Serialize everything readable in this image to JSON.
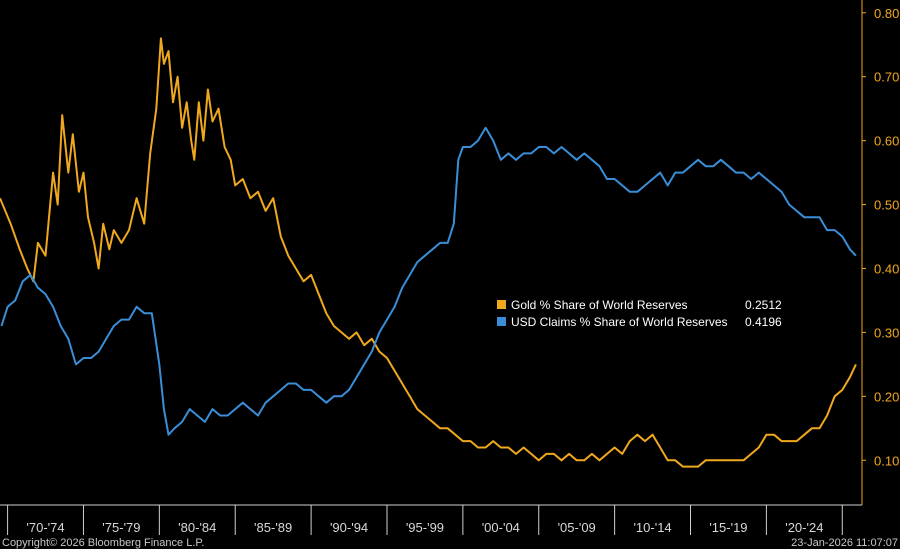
{
  "chart_data": {
    "type": "line",
    "x_categories": [
      "'70-'74",
      "'75-'79",
      "'80-'84",
      "'85-'89",
      "'90-'94",
      "'95-'99",
      "'00-'04",
      "'05-'09",
      "'10-'14",
      "'15-'19",
      "'20-'24"
    ],
    "y_ticks": [
      "0.10",
      "0.20",
      "0.30",
      "0.40",
      "0.50",
      "0.60",
      "0.70",
      "0.80"
    ],
    "ylim": [
      0.03,
      0.82
    ],
    "xlim": [
      1969.5,
      2026.3
    ],
    "grid": false,
    "legend_position": "center-right",
    "series": [
      {
        "name": "Gold % Share of World Reserves",
        "last_value": "0.2512",
        "color": "#f0a81e",
        "points": [
          [
            1969.5,
            0.51
          ],
          [
            1970.2,
            0.47
          ],
          [
            1970.8,
            0.43
          ],
          [
            1971.3,
            0.4
          ],
          [
            1971.7,
            0.38
          ],
          [
            1972.0,
            0.44
          ],
          [
            1972.5,
            0.42
          ],
          [
            1973.0,
            0.55
          ],
          [
            1973.3,
            0.5
          ],
          [
            1973.6,
            0.64
          ],
          [
            1974.0,
            0.55
          ],
          [
            1974.3,
            0.61
          ],
          [
            1974.7,
            0.52
          ],
          [
            1975.0,
            0.55
          ],
          [
            1975.3,
            0.48
          ],
          [
            1975.7,
            0.44
          ],
          [
            1976.0,
            0.4
          ],
          [
            1976.3,
            0.47
          ],
          [
            1976.7,
            0.43
          ],
          [
            1977.0,
            0.46
          ],
          [
            1977.5,
            0.44
          ],
          [
            1978.0,
            0.46
          ],
          [
            1978.5,
            0.51
          ],
          [
            1979.0,
            0.47
          ],
          [
            1979.4,
            0.58
          ],
          [
            1979.8,
            0.65
          ],
          [
            1980.1,
            0.76
          ],
          [
            1980.3,
            0.72
          ],
          [
            1980.6,
            0.74
          ],
          [
            1980.9,
            0.66
          ],
          [
            1981.2,
            0.7
          ],
          [
            1981.5,
            0.62
          ],
          [
            1981.8,
            0.66
          ],
          [
            1982.1,
            0.6
          ],
          [
            1982.3,
            0.57
          ],
          [
            1982.6,
            0.66
          ],
          [
            1982.9,
            0.6
          ],
          [
            1983.2,
            0.68
          ],
          [
            1983.5,
            0.63
          ],
          [
            1983.9,
            0.65
          ],
          [
            1984.3,
            0.59
          ],
          [
            1984.7,
            0.57
          ],
          [
            1985.0,
            0.53
          ],
          [
            1985.5,
            0.54
          ],
          [
            1986.0,
            0.51
          ],
          [
            1986.5,
            0.52
          ],
          [
            1987.0,
            0.49
          ],
          [
            1987.5,
            0.51
          ],
          [
            1988.0,
            0.45
          ],
          [
            1988.5,
            0.42
          ],
          [
            1989.0,
            0.4
          ],
          [
            1989.5,
            0.38
          ],
          [
            1990.0,
            0.39
          ],
          [
            1990.5,
            0.36
          ],
          [
            1991.0,
            0.33
          ],
          [
            1991.5,
            0.31
          ],
          [
            1992.0,
            0.3
          ],
          [
            1992.5,
            0.29
          ],
          [
            1993.0,
            0.3
          ],
          [
            1993.5,
            0.28
          ],
          [
            1994.0,
            0.29
          ],
          [
            1994.5,
            0.27
          ],
          [
            1995.0,
            0.26
          ],
          [
            1995.5,
            0.24
          ],
          [
            1996.0,
            0.22
          ],
          [
            1996.5,
            0.2
          ],
          [
            1997.0,
            0.18
          ],
          [
            1997.5,
            0.17
          ],
          [
            1998.0,
            0.16
          ],
          [
            1998.5,
            0.15
          ],
          [
            1999.0,
            0.15
          ],
          [
            1999.5,
            0.14
          ],
          [
            2000.0,
            0.13
          ],
          [
            2000.5,
            0.13
          ],
          [
            2001.0,
            0.12
          ],
          [
            2001.5,
            0.12
          ],
          [
            2002.0,
            0.13
          ],
          [
            2002.5,
            0.12
          ],
          [
            2003.0,
            0.12
          ],
          [
            2003.5,
            0.11
          ],
          [
            2004.0,
            0.12
          ],
          [
            2004.5,
            0.11
          ],
          [
            2005.0,
            0.1
          ],
          [
            2005.5,
            0.11
          ],
          [
            2006.0,
            0.11
          ],
          [
            2006.5,
            0.1
          ],
          [
            2007.0,
            0.11
          ],
          [
            2007.5,
            0.1
          ],
          [
            2008.0,
            0.1
          ],
          [
            2008.5,
            0.11
          ],
          [
            2009.0,
            0.1
          ],
          [
            2009.5,
            0.11
          ],
          [
            2010.0,
            0.12
          ],
          [
            2010.5,
            0.11
          ],
          [
            2011.0,
            0.13
          ],
          [
            2011.5,
            0.14
          ],
          [
            2012.0,
            0.13
          ],
          [
            2012.5,
            0.14
          ],
          [
            2013.0,
            0.12
          ],
          [
            2013.5,
            0.1
          ],
          [
            2014.0,
            0.1
          ],
          [
            2014.5,
            0.09
          ],
          [
            2015.0,
            0.09
          ],
          [
            2015.5,
            0.09
          ],
          [
            2016.0,
            0.1
          ],
          [
            2016.5,
            0.1
          ],
          [
            2017.0,
            0.1
          ],
          [
            2017.5,
            0.1
          ],
          [
            2018.0,
            0.1
          ],
          [
            2018.5,
            0.1
          ],
          [
            2019.0,
            0.11
          ],
          [
            2019.5,
            0.12
          ],
          [
            2020.0,
            0.14
          ],
          [
            2020.5,
            0.14
          ],
          [
            2021.0,
            0.13
          ],
          [
            2021.5,
            0.13
          ],
          [
            2022.0,
            0.13
          ],
          [
            2022.5,
            0.14
          ],
          [
            2023.0,
            0.15
          ],
          [
            2023.5,
            0.15
          ],
          [
            2024.0,
            0.17
          ],
          [
            2024.5,
            0.2
          ],
          [
            2025.0,
            0.21
          ],
          [
            2025.5,
            0.23
          ],
          [
            2025.9,
            0.25
          ]
        ]
      },
      {
        "name": "USD Claims % Share of World Reserves",
        "last_value": "0.4196",
        "color": "#3a8ed8",
        "points": [
          [
            1969.6,
            0.31
          ],
          [
            1970.0,
            0.34
          ],
          [
            1970.5,
            0.35
          ],
          [
            1971.0,
            0.38
          ],
          [
            1971.5,
            0.39
          ],
          [
            1972.0,
            0.37
          ],
          [
            1972.5,
            0.36
          ],
          [
            1973.0,
            0.34
          ],
          [
            1973.5,
            0.31
          ],
          [
            1974.0,
            0.29
          ],
          [
            1974.5,
            0.25
          ],
          [
            1975.0,
            0.26
          ],
          [
            1975.5,
            0.26
          ],
          [
            1976.0,
            0.27
          ],
          [
            1976.5,
            0.29
          ],
          [
            1977.0,
            0.31
          ],
          [
            1977.5,
            0.32
          ],
          [
            1978.0,
            0.32
          ],
          [
            1978.5,
            0.34
          ],
          [
            1979.0,
            0.33
          ],
          [
            1979.5,
            0.33
          ],
          [
            1980.0,
            0.25
          ],
          [
            1980.3,
            0.18
          ],
          [
            1980.6,
            0.14
          ],
          [
            1981.0,
            0.15
          ],
          [
            1981.5,
            0.16
          ],
          [
            1982.0,
            0.18
          ],
          [
            1982.5,
            0.17
          ],
          [
            1983.0,
            0.16
          ],
          [
            1983.5,
            0.18
          ],
          [
            1984.0,
            0.17
          ],
          [
            1984.5,
            0.17
          ],
          [
            1985.0,
            0.18
          ],
          [
            1985.5,
            0.19
          ],
          [
            1986.0,
            0.18
          ],
          [
            1986.5,
            0.17
          ],
          [
            1987.0,
            0.19
          ],
          [
            1987.5,
            0.2
          ],
          [
            1988.0,
            0.21
          ],
          [
            1988.5,
            0.22
          ],
          [
            1989.0,
            0.22
          ],
          [
            1989.5,
            0.21
          ],
          [
            1990.0,
            0.21
          ],
          [
            1990.5,
            0.2
          ],
          [
            1991.0,
            0.19
          ],
          [
            1991.5,
            0.2
          ],
          [
            1992.0,
            0.2
          ],
          [
            1992.5,
            0.21
          ],
          [
            1993.0,
            0.23
          ],
          [
            1993.5,
            0.25
          ],
          [
            1994.0,
            0.27
          ],
          [
            1994.5,
            0.3
          ],
          [
            1995.0,
            0.32
          ],
          [
            1995.5,
            0.34
          ],
          [
            1996.0,
            0.37
          ],
          [
            1996.5,
            0.39
          ],
          [
            1997.0,
            0.41
          ],
          [
            1997.5,
            0.42
          ],
          [
            1998.0,
            0.43
          ],
          [
            1998.5,
            0.44
          ],
          [
            1999.0,
            0.44
          ],
          [
            1999.4,
            0.47
          ],
          [
            1999.7,
            0.57
          ],
          [
            2000.0,
            0.59
          ],
          [
            2000.5,
            0.59
          ],
          [
            2001.0,
            0.6
          ],
          [
            2001.5,
            0.62
          ],
          [
            2002.0,
            0.6
          ],
          [
            2002.5,
            0.57
          ],
          [
            2003.0,
            0.58
          ],
          [
            2003.5,
            0.57
          ],
          [
            2004.0,
            0.58
          ],
          [
            2004.5,
            0.58
          ],
          [
            2005.0,
            0.59
          ],
          [
            2005.5,
            0.59
          ],
          [
            2006.0,
            0.58
          ],
          [
            2006.5,
            0.59
          ],
          [
            2007.0,
            0.58
          ],
          [
            2007.5,
            0.57
          ],
          [
            2008.0,
            0.58
          ],
          [
            2008.5,
            0.57
          ],
          [
            2009.0,
            0.56
          ],
          [
            2009.5,
            0.54
          ],
          [
            2010.0,
            0.54
          ],
          [
            2010.5,
            0.53
          ],
          [
            2011.0,
            0.52
          ],
          [
            2011.5,
            0.52
          ],
          [
            2012.0,
            0.53
          ],
          [
            2012.5,
            0.54
          ],
          [
            2013.0,
            0.55
          ],
          [
            2013.5,
            0.53
          ],
          [
            2014.0,
            0.55
          ],
          [
            2014.5,
            0.55
          ],
          [
            2015.0,
            0.56
          ],
          [
            2015.5,
            0.57
          ],
          [
            2016.0,
            0.56
          ],
          [
            2016.5,
            0.56
          ],
          [
            2017.0,
            0.57
          ],
          [
            2017.5,
            0.56
          ],
          [
            2018.0,
            0.55
          ],
          [
            2018.5,
            0.55
          ],
          [
            2019.0,
            0.54
          ],
          [
            2019.5,
            0.55
          ],
          [
            2020.0,
            0.54
          ],
          [
            2020.5,
            0.53
          ],
          [
            2021.0,
            0.52
          ],
          [
            2021.5,
            0.5
          ],
          [
            2022.0,
            0.49
          ],
          [
            2022.5,
            0.48
          ],
          [
            2023.0,
            0.48
          ],
          [
            2023.5,
            0.48
          ],
          [
            2024.0,
            0.46
          ],
          [
            2024.5,
            0.46
          ],
          [
            2025.0,
            0.45
          ],
          [
            2025.5,
            0.43
          ],
          [
            2025.9,
            0.42
          ]
        ]
      }
    ]
  },
  "footer": {
    "copyright": "Copyright© 2026 Bloomberg Finance L.P.",
    "timestamp": "23-Jan-2026 11:07:07"
  }
}
